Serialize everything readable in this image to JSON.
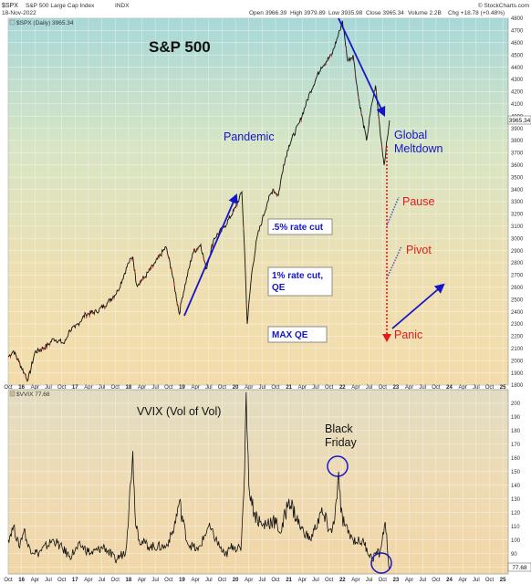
{
  "header": {
    "symbol": "$SPX",
    "name": "S&P 500 Large Cap Index",
    "exchange": "INDX",
    "date": "18-Nov-2022",
    "open": "Open 3966.39",
    "high": "High 3979.89",
    "low": "Low 3935.98",
    "close": "Close 3965.34",
    "volume": "Volume 2.2B",
    "change": "Chg +18.78 (+0.48%)",
    "brand": "© StockCharts.com"
  },
  "colors": {
    "accent": "#1515c8",
    "panic": "#e01b1b",
    "bar_up": "#000000",
    "bar_down": "#c41a1a",
    "line": "#101010"
  },
  "chart_data": [
    {
      "type": "line",
      "title": "S&P 500",
      "legend": "$SPX (Daily) 3965.34",
      "last_value_label": "3965.34",
      "ylim": [
        1800,
        4800
      ],
      "y_ticks": [
        1800,
        1900,
        2000,
        2100,
        2200,
        2300,
        2400,
        2500,
        2600,
        2700,
        2800,
        2900,
        3000,
        3100,
        3200,
        3300,
        3400,
        3500,
        3600,
        3700,
        3800,
        3900,
        4000,
        4100,
        4200,
        4300,
        4400,
        4500,
        4600,
        4700,
        4800
      ],
      "x_ticks": [
        "Oct",
        "16",
        "Apr",
        "Jul",
        "Oct",
        "17",
        "Apr",
        "Jul",
        "Oct",
        "18",
        "Apr",
        "Jul",
        "Oct",
        "19",
        "Apr",
        "Jul",
        "Oct",
        "20",
        "Apr",
        "Jul",
        "Oct",
        "21",
        "Apr",
        "Jul",
        "Oct",
        "22",
        "Apr",
        "Jul",
        "Oct",
        "23",
        "Apr",
        "Jul",
        "Oct",
        "24",
        "Apr",
        "Jul",
        "Oct",
        "25"
      ],
      "xlim": [
        2015.75,
        2025.1
      ],
      "series": [
        {
          "x": [
            2015.75,
            2015.85,
            2015.95,
            2016.05,
            2016.12,
            2016.25,
            2016.4,
            2016.5,
            2016.6,
            2016.8,
            2016.9,
            2017.0,
            2017.2,
            2017.4,
            2017.6,
            2017.8,
            2018.0,
            2018.08,
            2018.15,
            2018.3,
            2018.5,
            2018.7,
            2018.8,
            2018.95,
            2019.0,
            2019.2,
            2019.35,
            2019.45,
            2019.6,
            2019.8,
            2020.0,
            2020.12,
            2020.18,
            2020.22,
            2020.3,
            2020.4,
            2020.5,
            2020.6,
            2020.7,
            2020.8,
            2020.9,
            2021.0,
            2021.2,
            2021.4,
            2021.6,
            2021.8,
            2021.95,
            2022.0,
            2022.1,
            2022.2,
            2022.3,
            2022.45,
            2022.55,
            2022.62,
            2022.7,
            2022.78,
            2022.88
          ],
          "values": [
            2030,
            2080,
            1990,
            1900,
            1840,
            2070,
            2100,
            2130,
            2180,
            2140,
            2250,
            2270,
            2380,
            2400,
            2470,
            2570,
            2800,
            2850,
            2620,
            2680,
            2800,
            2930,
            2750,
            2380,
            2510,
            2880,
            2950,
            2750,
            3000,
            3100,
            3250,
            3380,
            2800,
            2300,
            2700,
            3000,
            3150,
            3300,
            3400,
            3350,
            3600,
            3760,
            3950,
            4200,
            4400,
            4500,
            4700,
            4780,
            4450,
            4500,
            4150,
            3800,
            4100,
            4250,
            3900,
            3600,
            3965
          ]
        }
      ],
      "annotations": [
        "S&P 500",
        "Pandemic",
        ".5% rate cut",
        "1% rate cut, QE",
        "MAX QE",
        "Global Meltdown",
        "Pause",
        "Pivot",
        "Panic"
      ]
    },
    {
      "type": "line",
      "title": "VVIX (Vol of Vol)",
      "legend": "$VVIX 77.68",
      "last_value_label": "77.68",
      "ylim": [
        75,
        210
      ],
      "y_ticks": [
        80,
        90,
        100,
        110,
        120,
        130,
        140,
        150,
        160,
        170,
        180,
        190,
        200
      ],
      "xlim": [
        2015.75,
        2025.1
      ],
      "series": [
        {
          "x": [
            2015.75,
            2015.85,
            2015.95,
            2016.05,
            2016.12,
            2016.3,
            2016.6,
            2016.9,
            2017.1,
            2017.3,
            2017.55,
            2017.75,
            2017.95,
            2018.08,
            2018.12,
            2018.2,
            2018.4,
            2018.7,
            2018.85,
            2018.95,
            2019.1,
            2019.3,
            2019.5,
            2019.8,
            2019.95,
            2020.1,
            2020.17,
            2020.2,
            2020.25,
            2020.35,
            2020.5,
            2020.7,
            2020.85,
            2021.0,
            2021.2,
            2021.4,
            2021.6,
            2021.8,
            2021.9,
            2021.93,
            2021.97,
            2022.05,
            2022.2,
            2022.4,
            2022.55,
            2022.62,
            2022.7,
            2022.8,
            2022.88
          ],
          "values": [
            100,
            110,
            95,
            108,
            95,
            90,
            100,
            88,
            96,
            90,
            95,
            85,
            92,
            165,
            120,
            100,
            95,
            95,
            108,
            128,
            98,
            92,
            110,
            88,
            96,
            92,
            150,
            208,
            140,
            120,
            110,
            115,
            105,
            130,
            110,
            100,
            120,
            105,
            130,
            150,
            120,
            110,
            100,
            98,
            86,
            90,
            90,
            113,
            78
          ]
        }
      ],
      "annotations": [
        "VVIX (Vol of Vol)",
        "Black Friday"
      ]
    }
  ]
}
